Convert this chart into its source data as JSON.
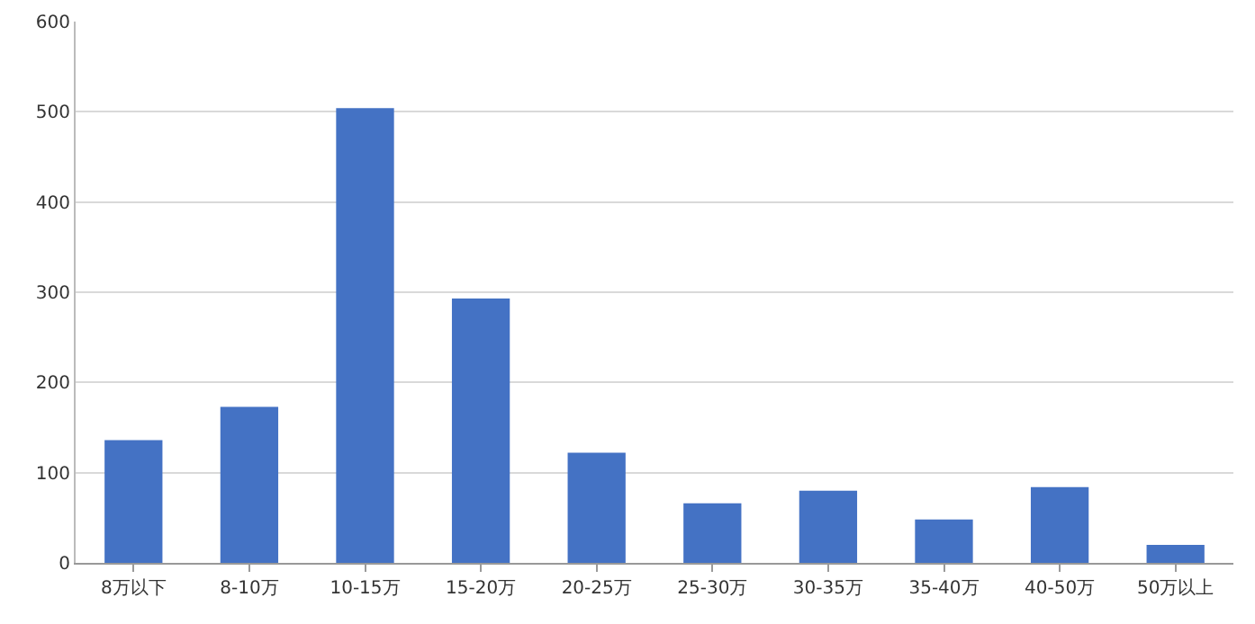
{
  "chart_data": {
    "type": "bar",
    "categories": [
      "8万以下",
      "8-10万",
      "10-15万",
      "15-20万",
      "20-25万",
      "25-30万",
      "30-35万",
      "35-40万",
      "40-50万",
      "50万以上"
    ],
    "values": [
      136,
      173,
      504,
      293,
      122,
      66,
      80,
      48,
      84,
      20
    ],
    "color": "#4472c4",
    "ylim": [
      0,
      600
    ],
    "yticks": [
      0,
      100,
      200,
      300,
      400,
      500,
      600
    ],
    "grid": "y"
  }
}
